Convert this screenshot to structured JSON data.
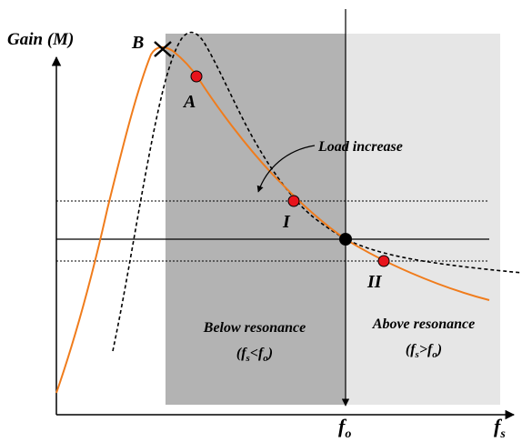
{
  "axes": {
    "y_label": "Gain (M)",
    "x_label_main": "f",
    "x_label_sub": "s",
    "fo_main": "f",
    "fo_sub": "o"
  },
  "regions": {
    "below": {
      "title": "Below resonance",
      "cond_open": "(f",
      "cond_sub1": "s",
      "cond_op": "<f",
      "cond_sub2": "o",
      "cond_close": ")"
    },
    "above": {
      "title": "Above resonance",
      "cond_open": "(f",
      "cond_sub1": "s",
      "cond_op": ">f",
      "cond_sub2": "o",
      "cond_close": ")"
    }
  },
  "annotations": {
    "load_increase": "Load increase",
    "point_A": "A",
    "point_B": "B",
    "point_I": "I",
    "point_II": "II"
  },
  "colors": {
    "below_region": "#b3b3b3",
    "above_region": "#e6e6e6",
    "loaded_curve": "#f07c1c",
    "light_load_curve": "#000000",
    "operating_point": "#e8141c",
    "resonance_point": "#000000"
  }
}
